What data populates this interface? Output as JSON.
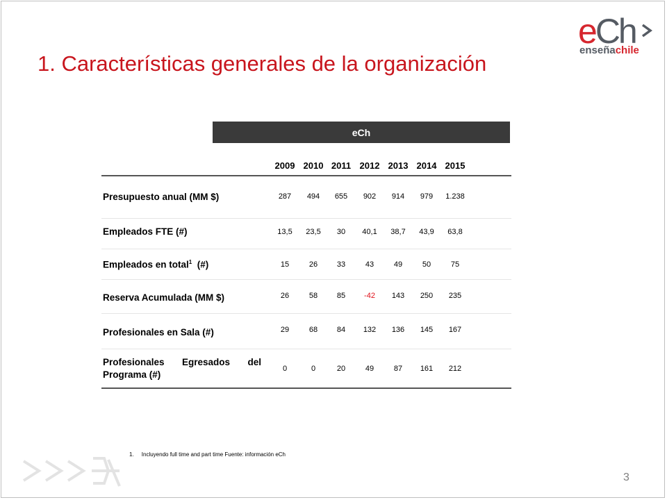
{
  "logo": {
    "main_e": "e",
    "main_ch": "Ch",
    "sub_part1": "enseña",
    "sub_part2": "chile"
  },
  "title": "1. Características generales de la organización",
  "table": {
    "header": "eCh",
    "years": [
      "2009",
      "2010",
      "2011",
      "2012",
      "2013",
      "2014",
      "2015"
    ],
    "rows": [
      {
        "label": "Presupuesto anual  (MM $)",
        "values": [
          "287",
          "494",
          "655",
          "902",
          "914",
          "979",
          "1.238"
        ]
      },
      {
        "label": "Empleados FTE  (#)",
        "values": [
          "13,5",
          "23,5",
          "30",
          "40,1",
          "38,7",
          "43,9",
          "63,8"
        ]
      },
      {
        "label_pre": "Empleados en total",
        "label_sup": "1",
        "label_post": "  (#)",
        "values": [
          "15",
          "26",
          "33",
          "43",
          "49",
          "50",
          "75"
        ]
      },
      {
        "label": "Reserva Acumulada (MM $)",
        "values": [
          "26",
          "58",
          "85",
          "-42",
          "143",
          "250",
          "235"
        ]
      },
      {
        "label": "Profesionales  en Sala (#)",
        "values": [
          "29",
          "68",
          "84",
          "132",
          "136",
          "145",
          "167"
        ]
      },
      {
        "label": "Profesionales  Egresados  del Programa  (#)",
        "values": [
          "0",
          "0",
          "20",
          "49",
          "87",
          "161",
          "212"
        ]
      }
    ]
  },
  "footnote": "1.     Incluyendo full time and part time Fuente: información eCh",
  "page_number": "3",
  "colors": {
    "title": "#c8151d",
    "negative": "#e0121b",
    "header_bar": "#3a3a3a",
    "brand_grey": "#555b63"
  }
}
